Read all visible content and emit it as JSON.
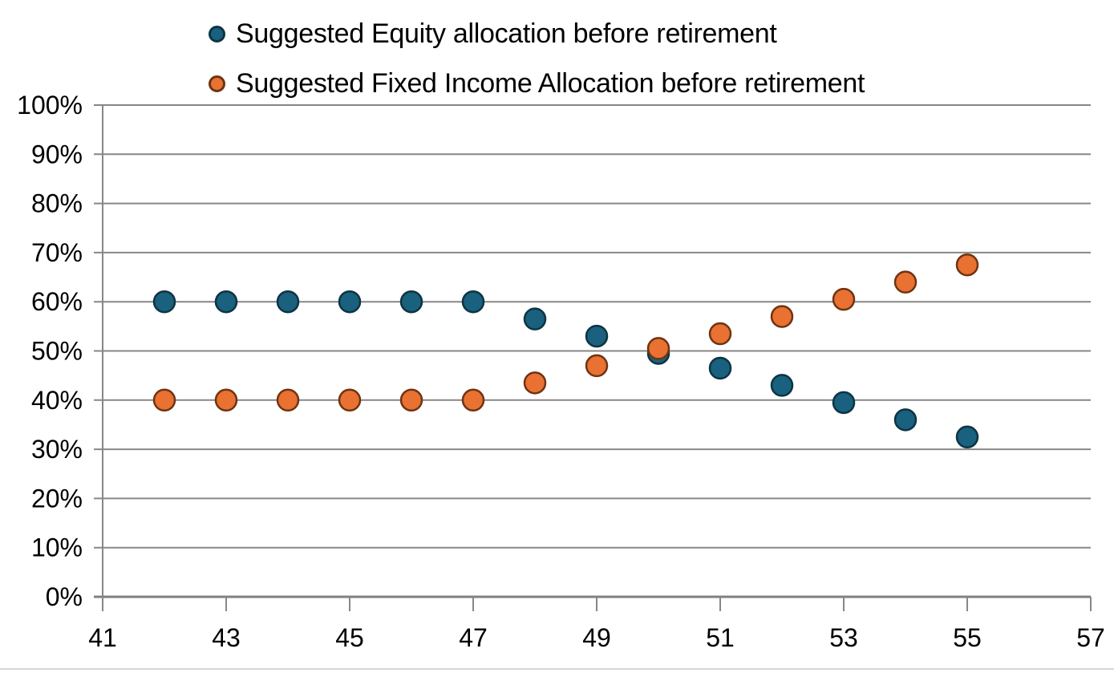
{
  "legend": {
    "items": [
      {
        "label": "Suggested Equity allocation before retirement",
        "color": "#1A607F",
        "border": "#0E3442"
      },
      {
        "label": "Suggested Fixed Income Allocation before retirement",
        "color": "#E97132",
        "border": "#6E3412"
      }
    ]
  },
  "chart_data": {
    "type": "scatter",
    "x": [
      42,
      43,
      44,
      45,
      46,
      47,
      48,
      49,
      50,
      51,
      52,
      53,
      54,
      55
    ],
    "series": [
      {
        "name": "Suggested Equity allocation before retirement",
        "color": "#1A607F",
        "border": "#0E3442",
        "values": [
          60,
          60,
          60,
          60,
          60,
          60,
          56.5,
          53,
          49.5,
          46.5,
          43,
          39.5,
          36,
          32.5
        ]
      },
      {
        "name": "Suggested Fixed Income Allocation before retirement",
        "color": "#E97132",
        "border": "#6E3412",
        "values": [
          40,
          40,
          40,
          40,
          40,
          40,
          43.5,
          47,
          50.5,
          53.5,
          57,
          60.5,
          64,
          67.5
        ]
      }
    ],
    "title": "",
    "xlabel": "",
    "ylabel": "",
    "xlim": [
      41,
      57
    ],
    "ylim": [
      0,
      100
    ],
    "x_ticks": [
      41,
      43,
      45,
      47,
      49,
      51,
      53,
      55,
      57
    ],
    "y_ticks": [
      0,
      10,
      20,
      30,
      40,
      50,
      60,
      70,
      80,
      90,
      100
    ],
    "y_tick_suffix": "%",
    "grid": "horizontal",
    "legend_position": "top"
  },
  "style": {
    "gridline_color": "#878787",
    "axis_color": "#7F7F7F",
    "text_color": "#000000",
    "background": "#ffffff"
  }
}
